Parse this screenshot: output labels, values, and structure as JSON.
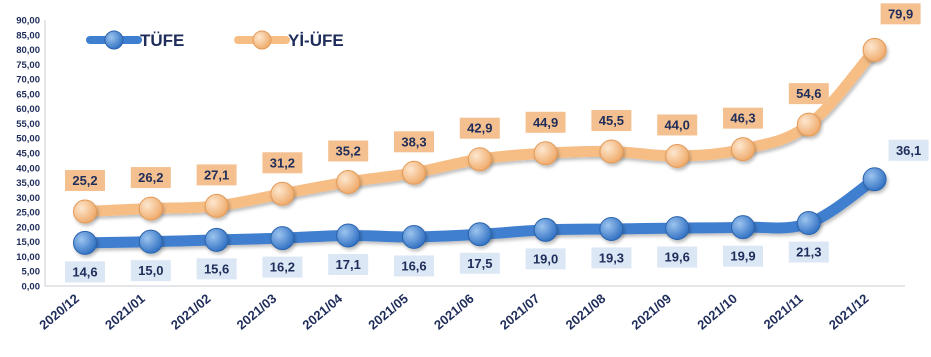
{
  "chart_data": {
    "type": "line",
    "categories": [
      "2020/12",
      "2021/01",
      "2021/02",
      "2021/03",
      "2021/04",
      "2021/05",
      "2021/06",
      "2021/07",
      "2021/08",
      "2021/09",
      "2021/10",
      "2021/11",
      "2021/12"
    ],
    "series": [
      {
        "name": "TÜFE",
        "values": [
          14.6,
          15.0,
          15.6,
          16.2,
          17.1,
          16.6,
          17.5,
          19.0,
          19.3,
          19.6,
          19.9,
          21.3,
          36.1
        ],
        "labels": [
          "14,6",
          "15,0",
          "15,6",
          "16,2",
          "17,1",
          "16,6",
          "17,5",
          "19,0",
          "19,3",
          "19,6",
          "19,9",
          "21,3",
          "36,1"
        ],
        "color": "#3f7fcf",
        "label_bg": "#dbe7f5"
      },
      {
        "name": "Yİ-ÜFE",
        "values": [
          25.2,
          26.2,
          27.1,
          31.2,
          35.2,
          38.3,
          42.9,
          44.9,
          45.5,
          44.0,
          46.3,
          54.6,
          79.9
        ],
        "labels": [
          "25,2",
          "26,2",
          "27,1",
          "31,2",
          "35,2",
          "38,3",
          "42,9",
          "44,9",
          "45,5",
          "44,0",
          "46,3",
          "54,6",
          "79,9"
        ],
        "color": "#f6bd85",
        "label_bg": "#f4c08f"
      }
    ],
    "ylim": [
      0,
      90
    ],
    "yticks": [
      "0,00",
      "5,00",
      "10,00",
      "15,00",
      "20,00",
      "25,00",
      "30,00",
      "35,00",
      "40,00",
      "45,00",
      "50,00",
      "55,00",
      "60,00",
      "65,00",
      "70,00",
      "75,00",
      "80,00",
      "85,00",
      "90,00"
    ],
    "legend_position": "top-left",
    "grid": false
  }
}
